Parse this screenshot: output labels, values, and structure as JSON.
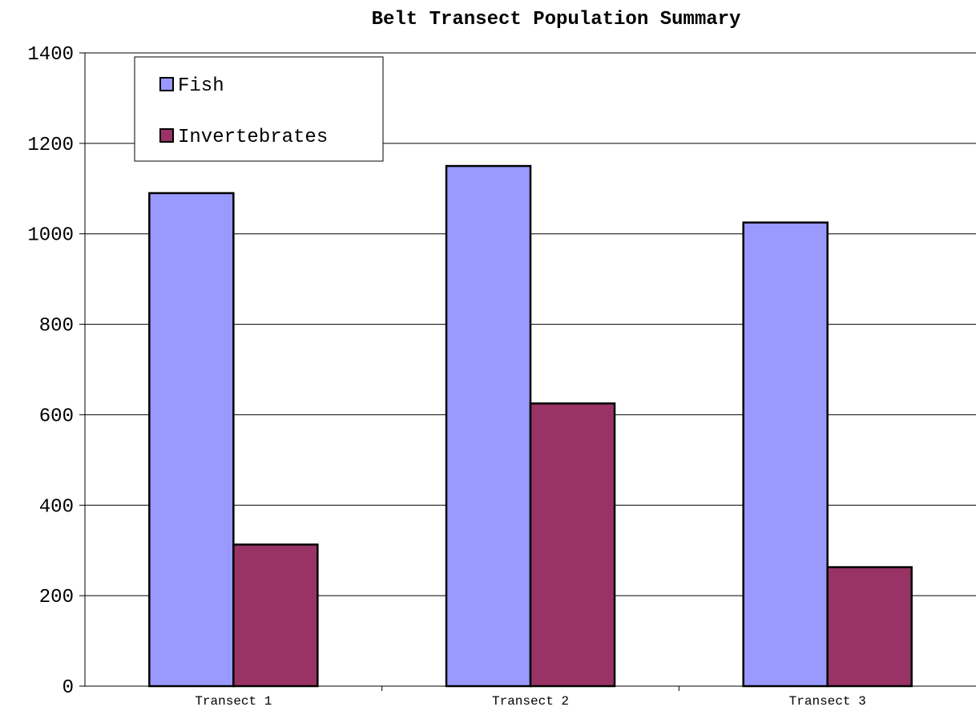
{
  "chart_data": {
    "type": "bar",
    "title": "Belt Transect Population Summary",
    "xlabel": "",
    "ylabel": "",
    "categories": [
      "Transect 1",
      "Transect 2",
      "Transect 3"
    ],
    "series": [
      {
        "name": "Fish",
        "color": "#9999ff",
        "values": [
          1090,
          1150,
          1025
        ]
      },
      {
        "name": "Invertebrates",
        "color": "#993366",
        "values": [
          313,
          625,
          263
        ]
      }
    ],
    "ylim": [
      0,
      1400
    ],
    "yticks": [
      "0",
      "200",
      "400",
      "600",
      "800",
      "1000",
      "1200",
      "1400"
    ],
    "grid": true,
    "legend_position": "top-left"
  }
}
